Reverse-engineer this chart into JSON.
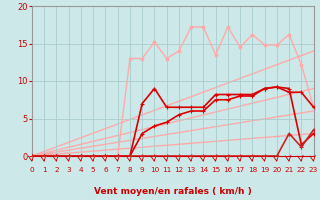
{
  "background_color": "#cce8e8",
  "grid_color": "#aacccc",
  "xlabel": "Vent moyen/en rafales ( km/h )",
  "xlim": [
    0,
    23
  ],
  "ylim": [
    0,
    20
  ],
  "yticks": [
    0,
    5,
    10,
    15,
    20
  ],
  "xticks": [
    0,
    1,
    2,
    3,
    4,
    5,
    6,
    7,
    8,
    9,
    10,
    11,
    12,
    13,
    14,
    15,
    16,
    17,
    18,
    19,
    20,
    21,
    22,
    23
  ],
  "lines": [
    {
      "x": [
        0,
        23
      ],
      "y": [
        0,
        14.0
      ],
      "color": "#ffaaaa",
      "lw": 1.0,
      "marker": null,
      "zorder": 1
    },
    {
      "x": [
        0,
        23
      ],
      "y": [
        0,
        9.0
      ],
      "color": "#ffaaaa",
      "lw": 1.0,
      "marker": null,
      "zorder": 1
    },
    {
      "x": [
        0,
        23
      ],
      "y": [
        0,
        6.0
      ],
      "color": "#ffaaaa",
      "lw": 1.0,
      "marker": null,
      "zorder": 1
    },
    {
      "x": [
        0,
        23
      ],
      "y": [
        0,
        3.0
      ],
      "color": "#ffaaaa",
      "lw": 1.0,
      "marker": null,
      "zorder": 1
    },
    {
      "x": [
        0,
        1,
        2,
        3,
        4,
        5,
        6,
        7,
        8,
        9,
        10,
        11,
        12,
        13,
        14,
        15,
        16,
        17,
        18,
        19,
        20,
        21,
        22,
        23
      ],
      "y": [
        0,
        0,
        0,
        0,
        0,
        0,
        0,
        0,
        0,
        0,
        0,
        0,
        0,
        0,
        0,
        0,
        0,
        0,
        0,
        0,
        0,
        0,
        0,
        0
      ],
      "color": "#ff9999",
      "lw": 0.7,
      "marker": "+",
      "zorder": 2
    },
    {
      "x": [
        0,
        1,
        2,
        3,
        4,
        5,
        6,
        7,
        8,
        9,
        10,
        11,
        12,
        13,
        14,
        15,
        16,
        17,
        18,
        19,
        20,
        21,
        22,
        23
      ],
      "y": [
        0,
        0,
        0,
        0,
        0,
        0,
        0,
        0,
        13.0,
        13.0,
        15.2,
        13.0,
        14.0,
        17.2,
        17.2,
        13.5,
        17.2,
        14.5,
        16.2,
        14.8,
        14.8,
        16.2,
        12.2,
        6.5
      ],
      "color": "#ffaaaa",
      "lw": 1.0,
      "marker": "o",
      "markersize": 2.0,
      "zorder": 3
    },
    {
      "x": [
        0,
        1,
        2,
        3,
        4,
        5,
        6,
        7,
        8,
        9,
        10,
        11,
        12,
        13,
        14,
        15,
        16,
        17,
        18,
        19,
        20,
        21,
        22,
        23
      ],
      "y": [
        0,
        0,
        0,
        0,
        0,
        0,
        0,
        0,
        0,
        7.0,
        9.0,
        6.5,
        6.5,
        6.5,
        6.5,
        8.2,
        8.2,
        8.2,
        8.2,
        9.0,
        9.2,
        9.0,
        1.5,
        3.0
      ],
      "color": "#dd0000",
      "lw": 1.2,
      "marker": "+",
      "markersize": 3.0,
      "zorder": 4
    },
    {
      "x": [
        0,
        1,
        2,
        3,
        4,
        5,
        6,
        7,
        8,
        9,
        10,
        11,
        12,
        13,
        14,
        15,
        16,
        17,
        18,
        19,
        20,
        21,
        22,
        23
      ],
      "y": [
        0,
        0,
        0,
        0,
        0,
        0,
        0,
        0,
        0,
        3.0,
        4.0,
        4.5,
        5.5,
        6.0,
        6.0,
        7.5,
        7.5,
        8.0,
        8.0,
        9.0,
        9.2,
        8.5,
        8.5,
        6.5
      ],
      "color": "#dd0000",
      "lw": 1.2,
      "marker": "+",
      "markersize": 3.0,
      "zorder": 4
    },
    {
      "x": [
        0,
        1,
        2,
        3,
        4,
        5,
        6,
        7,
        8,
        9,
        10,
        11,
        12,
        13,
        14,
        15,
        16,
        17,
        18,
        19,
        20,
        21,
        22,
        23
      ],
      "y": [
        0,
        0,
        0,
        0,
        0,
        0,
        0,
        0,
        0,
        0,
        0,
        0,
        0,
        0,
        0,
        0,
        0,
        0,
        0,
        0,
        0,
        3.0,
        1.2,
        3.5
      ],
      "color": "#cc2222",
      "lw": 1.2,
      "marker": "+",
      "markersize": 2.5,
      "zorder": 4
    }
  ]
}
